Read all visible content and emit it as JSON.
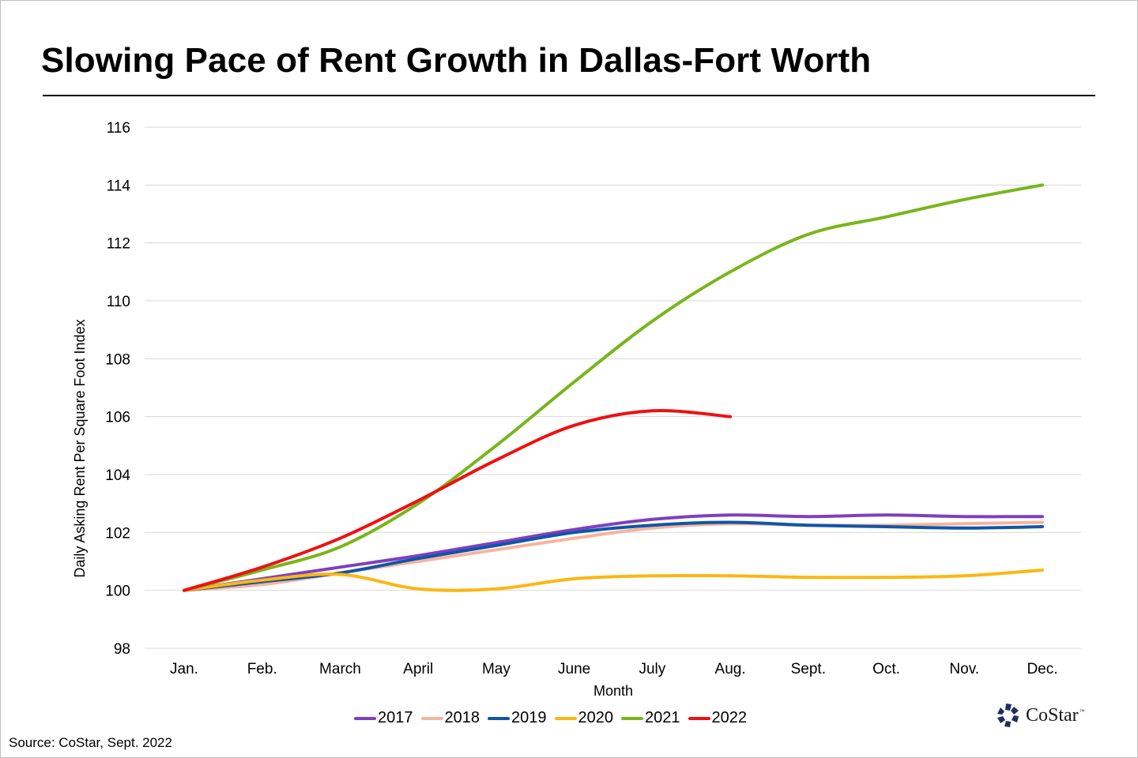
{
  "title": "Slowing Pace of Rent Growth in Dallas-Fort Worth",
  "source": "Source: CoStar, Sept. 2022",
  "logo": {
    "text": "CoStar",
    "tm": "™",
    "color": "#1f2f5e"
  },
  "chart_data": {
    "type": "line",
    "title": "Slowing Pace of Rent Growth in Dallas-Fort Worth",
    "xlabel": "Month",
    "ylabel": "Daily Asking Rent Per Square Foot Index",
    "ylim": [
      98,
      116
    ],
    "yticks": [
      98,
      100,
      102,
      104,
      106,
      108,
      110,
      112,
      114,
      116
    ],
    "grid": true,
    "legend_position": "bottom",
    "smooth": true,
    "categories": [
      "Jan.",
      "Feb.",
      "March",
      "April",
      "May",
      "June",
      "July",
      "Aug.",
      "Sept.",
      "Oct.",
      "Nov.",
      "Dec."
    ],
    "series": [
      {
        "name": "2017",
        "color": "#7f3fbf",
        "values": [
          100,
          100.4,
          100.8,
          101.2,
          101.65,
          102.1,
          102.45,
          102.6,
          102.55,
          102.6,
          102.55,
          102.55
        ]
      },
      {
        "name": "2018",
        "color": "#f7b49c",
        "values": [
          100,
          100.2,
          100.6,
          101.0,
          101.4,
          101.8,
          102.15,
          102.3,
          102.25,
          102.25,
          102.3,
          102.35
        ]
      },
      {
        "name": "2019",
        "color": "#0f56a8",
        "values": [
          100,
          100.3,
          100.6,
          101.1,
          101.55,
          102.0,
          102.25,
          102.35,
          102.25,
          102.2,
          102.15,
          102.2
        ]
      },
      {
        "name": "2020",
        "color": "#fbb712",
        "values": [
          100,
          100.35,
          100.55,
          100.05,
          100.05,
          100.4,
          100.5,
          100.5,
          100.45,
          100.45,
          100.5,
          100.7
        ]
      },
      {
        "name": "2021",
        "color": "#78b51b",
        "values": [
          100,
          100.7,
          101.5,
          103.0,
          105.0,
          107.2,
          109.3,
          111.0,
          112.3,
          112.9,
          113.5,
          114.0
        ]
      },
      {
        "name": "2022",
        "color": "#ee1111",
        "values": [
          100,
          100.8,
          101.8,
          103.1,
          104.5,
          105.7,
          106.2,
          106.0
        ]
      }
    ]
  }
}
